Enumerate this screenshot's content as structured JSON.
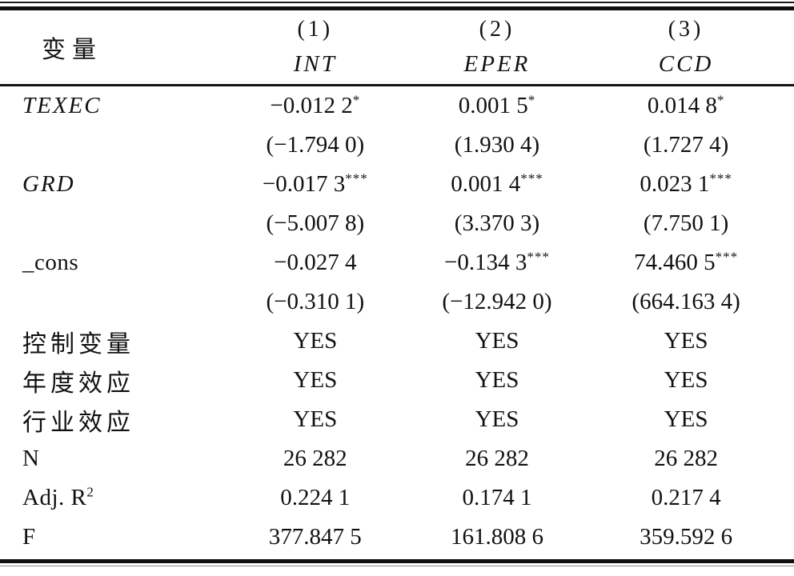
{
  "table": {
    "header": {
      "variable_label": "变量",
      "columns": [
        {
          "number": "(1)",
          "name": "INT"
        },
        {
          "number": "(2)",
          "name": "EPER"
        },
        {
          "number": "(3)",
          "name": "CCD"
        }
      ]
    },
    "rows": [
      {
        "label": "TEXEC",
        "cells": [
          {
            "t": "−0.012 2",
            "s": "*"
          },
          {
            "t": "0.001 5",
            "s": "*"
          },
          {
            "t": "0.014 8",
            "s": "*"
          }
        ]
      },
      {
        "label": "",
        "cells": [
          {
            "t": "(−1.794 0)"
          },
          {
            "t": "(1.930 4)"
          },
          {
            "t": "(1.727 4)"
          }
        ]
      },
      {
        "label": "GRD",
        "cells": [
          {
            "t": "−0.017 3",
            "s": "***"
          },
          {
            "t": "0.001 4",
            "s": "***"
          },
          {
            "t": "0.023 1",
            "s": "***"
          }
        ]
      },
      {
        "label": "",
        "cells": [
          {
            "t": "(−5.007 8)"
          },
          {
            "t": "(3.370 3)"
          },
          {
            "t": "(7.750 1)"
          }
        ]
      },
      {
        "label": "_cons",
        "cells": [
          {
            "t": "−0.027 4"
          },
          {
            "t": "−0.134 3",
            "s": "***"
          },
          {
            "t": "74.460 5",
            "s": "***"
          }
        ]
      },
      {
        "label": "",
        "cells": [
          {
            "t": "(−0.310 1)"
          },
          {
            "t": "(−12.942 0)"
          },
          {
            "t": "(664.163 4)"
          }
        ]
      },
      {
        "label": "控制变量",
        "cells": [
          {
            "t": "YES"
          },
          {
            "t": "YES"
          },
          {
            "t": "YES"
          }
        ]
      },
      {
        "label": "年度效应",
        "cells": [
          {
            "t": "YES"
          },
          {
            "t": "YES"
          },
          {
            "t": "YES"
          }
        ]
      },
      {
        "label": "行业效应",
        "cells": [
          {
            "t": "YES"
          },
          {
            "t": "YES"
          },
          {
            "t": "YES"
          }
        ]
      },
      {
        "label": "N",
        "cells": [
          {
            "t": "26 282"
          },
          {
            "t": "26 282"
          },
          {
            "t": "26 282"
          }
        ]
      },
      {
        "label": "Adj. R",
        "label_sup": "2",
        "cells": [
          {
            "t": "0.224 1"
          },
          {
            "t": "0.174 1"
          },
          {
            "t": "0.217 4"
          }
        ]
      },
      {
        "label": "F",
        "cells": [
          {
            "t": "377.847 5"
          },
          {
            "t": "161.808 6"
          },
          {
            "t": "359.592 6"
          }
        ]
      }
    ]
  }
}
